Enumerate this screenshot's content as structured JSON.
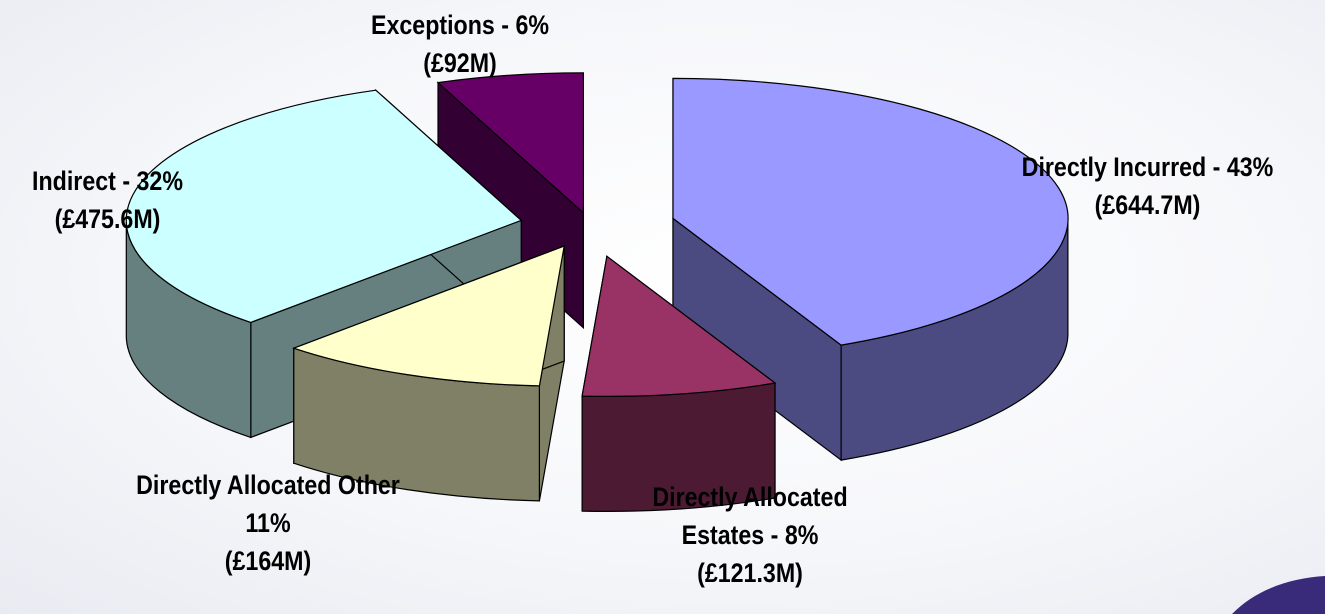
{
  "chart_data": {
    "type": "pie",
    "style": "3d-exploded",
    "slices": [
      {
        "name": "Directly Incurred",
        "percent": 43,
        "value_millions_gbp": 644.7,
        "label_line1": "Directly Incurred - 43%",
        "label_line2": "(£644.7M)",
        "top_color": "#9999ff",
        "side_color": "#4b4b82"
      },
      {
        "name": "Directly Allocated Estates",
        "percent": 8,
        "value_millions_gbp": 121.3,
        "label_line1": "Directly Allocated",
        "label_line2": "Estates - 8%",
        "label_line3": "(£121.3M)",
        "top_color": "#993366",
        "side_color": "#4d1a33"
      },
      {
        "name": "Directly Allocated Other",
        "percent": 11,
        "value_millions_gbp": 164,
        "label_line1": "Directly Allocated Other",
        "label_line2": "11%",
        "label_line3": "(£164M)",
        "top_color": "#ffffcc",
        "side_color": "#808066"
      },
      {
        "name": "Indirect",
        "percent": 32,
        "value_millions_gbp": 475.6,
        "label_line1": "Indirect - 32%",
        "label_line2": "(£475.6M)",
        "top_color": "#ccffff",
        "side_color": "#668080"
      },
      {
        "name": "Exceptions",
        "percent": 6,
        "value_millions_gbp": 92,
        "label_line1": "Exceptions - 6%",
        "label_line2": "(£92M)",
        "top_color": "#660066",
        "side_color": "#330033"
      }
    ],
    "legend": "none",
    "logo_color": "#3a2a7a"
  }
}
